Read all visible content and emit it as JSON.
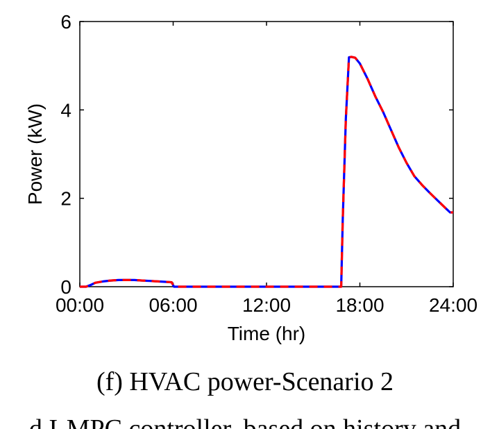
{
  "chart_data": {
    "type": "line",
    "title": "",
    "xlabel": "Time (hr)",
    "ylabel": "Power (kW)",
    "x_tick_labels": [
      "00:00",
      "06:00",
      "12:00",
      "18:00",
      "24:00"
    ],
    "x_tick_values": [
      0,
      6,
      12,
      18,
      24
    ],
    "y_tick_labels": [
      "0",
      "2",
      "4",
      "6"
    ],
    "y_tick_values": [
      0,
      2,
      4,
      6
    ],
    "xlim": [
      0,
      24
    ],
    "ylim": [
      0,
      6
    ],
    "grid": false,
    "colors": {
      "solid": "#0000ff",
      "dashed": "#ff0000"
    },
    "series": [
      {
        "style": "solid",
        "color": "#0000ff",
        "x": [
          0,
          0.4,
          0.7,
          1,
          1.5,
          2,
          2.5,
          3,
          3.5,
          4,
          4.5,
          5,
          5.5,
          5.9,
          6.05,
          6.3,
          10,
          14,
          16.8,
          16.9,
          17.1,
          17.3,
          17.45,
          17.7,
          18.0,
          18.5,
          19,
          19.5,
          20,
          20.5,
          21,
          21.5,
          22,
          22.5,
          23,
          23.5,
          23.8,
          24
        ],
        "y": [
          0,
          0,
          0.04,
          0.09,
          0.12,
          0.14,
          0.15,
          0.15,
          0.15,
          0.14,
          0.13,
          0.12,
          0.11,
          0.1,
          0.0,
          0.0,
          0.0,
          0.0,
          0.0,
          1.5,
          3.8,
          5.19,
          5.2,
          5.18,
          5.05,
          4.7,
          4.3,
          3.95,
          3.55,
          3.15,
          2.8,
          2.5,
          2.3,
          2.12,
          1.95,
          1.78,
          1.68,
          1.68
        ]
      },
      {
        "style": "dashed",
        "color": "#ff0000",
        "x": [
          0,
          0.4,
          0.7,
          1,
          1.5,
          2,
          2.5,
          3,
          3.5,
          4,
          4.5,
          5,
          5.5,
          5.9,
          6.05,
          6.3,
          10,
          14,
          16.8,
          16.9,
          17.1,
          17.3,
          17.45,
          17.7,
          18.0,
          18.5,
          19,
          19.5,
          20,
          20.5,
          21,
          21.5,
          22,
          22.5,
          23,
          23.5,
          23.8,
          24
        ],
        "y": [
          0,
          0,
          0.04,
          0.09,
          0.12,
          0.14,
          0.15,
          0.15,
          0.15,
          0.14,
          0.13,
          0.12,
          0.11,
          0.1,
          0.0,
          0.0,
          0.0,
          0.0,
          0.0,
          1.5,
          3.8,
          5.19,
          5.2,
          5.18,
          5.05,
          4.7,
          4.3,
          3.95,
          3.55,
          3.15,
          2.8,
          2.5,
          2.3,
          2.12,
          1.95,
          1.78,
          1.68,
          1.68
        ]
      }
    ]
  },
  "caption": "(f) HVAC power-Scenario 2",
  "caption_cutoff": "d I-MPC controller, based on history and"
}
